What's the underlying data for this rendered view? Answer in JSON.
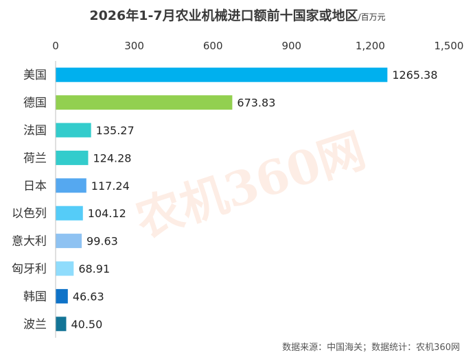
{
  "chart_data": {
    "type": "bar",
    "orientation": "horizontal",
    "title": "2026年1-7月农业机械进口额前十国家或地区",
    "unit": "/百万元",
    "categories": [
      "美国",
      "德国",
      "法国",
      "荷兰",
      "日本",
      "以色列",
      "意大利",
      "匈牙利",
      "韩国",
      "波兰"
    ],
    "values": [
      1265.38,
      673.83,
      135.27,
      124.28,
      117.24,
      104.12,
      99.63,
      68.91,
      46.63,
      40.5
    ],
    "value_labels": [
      "1265.38",
      "673.83",
      "135.27",
      "124.28",
      "117.24",
      "104.12",
      "99.63",
      "68.91",
      "46.63",
      "40.50"
    ],
    "colors": [
      "#00b0ee",
      "#92d050",
      "#33cccc",
      "#33cccc",
      "#55a8f0",
      "#55ccf8",
      "#8ec2f2",
      "#8fdcfc",
      "#0f73c8",
      "#137496"
    ],
    "xlim": [
      0,
      1500
    ],
    "ticks": [
      0,
      300,
      600,
      900,
      1200,
      1500
    ],
    "tick_labels": [
      "0",
      "300",
      "600",
      "900",
      "1,200",
      "1,500"
    ],
    "axis_position": "top",
    "grid": false,
    "legend": "none"
  },
  "source_note": "数据来源：中国海关；数据统计：农机360网",
  "watermark": "农机360网"
}
